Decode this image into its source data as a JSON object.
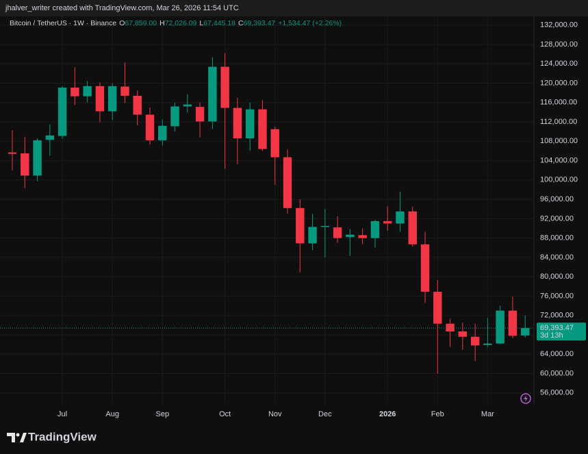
{
  "header": {
    "text": "jhalver_writer created with TradingView.com, Mar 26, 2026 11:54 UTC"
  },
  "chart_data": {
    "type": "candlestick",
    "symbol": "Bitcoin / TetherUS · 1W · Binance",
    "ohlc_legend": [
      {
        "label": "O",
        "value": "67,859.00"
      },
      {
        "label": "H",
        "value": "72,026.09"
      },
      {
        "label": "L",
        "value": "67,445.18"
      },
      {
        "label": "C",
        "value": "69,393.47"
      }
    ],
    "change": "+1,534.47 (+2.26%)",
    "open": [
      105700,
      105500,
      100900,
      108300,
      109100,
      119100,
      117300,
      119400,
      114200,
      119300,
      117400,
      113500,
      108200,
      111100,
      115200,
      115100,
      112100,
      123400,
      114900,
      108600,
      114600,
      110500,
      104700,
      94200,
      86900,
      90300,
      90200,
      88200,
      88600,
      88000,
      91500,
      91000,
      93500,
      86700,
      76900,
      70300,
      68700,
      67600,
      65900,
      66200,
      73000,
      67859
    ],
    "high": [
      110300,
      108900,
      108600,
      111500,
      119400,
      123300,
      120500,
      120200,
      120000,
      124300,
      118500,
      115000,
      112500,
      116000,
      117700,
      116000,
      125400,
      126200,
      117000,
      116000,
      116500,
      111000,
      106300,
      96000,
      93000,
      94000,
      92500,
      89900,
      90000,
      91800,
      94500,
      97600,
      94500,
      89300,
      79300,
      71300,
      70500,
      70300,
      71500,
      74000,
      75900,
      72026.09
    ],
    "low": [
      102000,
      98300,
      99700,
      105000,
      108500,
      115500,
      116000,
      111900,
      112400,
      115900,
      111300,
      107300,
      107100,
      110000,
      113900,
      108800,
      110500,
      102300,
      103300,
      106000,
      106000,
      99000,
      93000,
      80900,
      85500,
      84000,
      87000,
      84300,
      86700,
      86000,
      89500,
      89300,
      86200,
      74600,
      60000,
      65500,
      64900,
      62600,
      65500,
      66000,
      67300,
      67445.18
    ],
    "close": [
      105400,
      100900,
      108200,
      109200,
      119100,
      117300,
      119400,
      114200,
      119400,
      117400,
      113500,
      108200,
      111200,
      115200,
      115600,
      112100,
      123400,
      114900,
      108600,
      114600,
      106400,
      104700,
      94200,
      86900,
      90300,
      90500,
      88000,
      88700,
      88000,
      91500,
      91000,
      93500,
      86700,
      76900,
      70300,
      68700,
      67600,
      65800,
      66200,
      73000,
      67800,
      69393.47
    ],
    "up_color": "#089981",
    "down_color": "#f23645",
    "ylim": [
      53700,
      133800
    ],
    "yticks": [
      {
        "value": 56000,
        "label": "56,000.00"
      },
      {
        "value": 60000,
        "label": "60,000.00"
      },
      {
        "value": 64000,
        "label": "64,000.00"
      },
      {
        "value": 68000,
        "label": "68,000.00"
      },
      {
        "value": 72000,
        "label": "72,000.00"
      },
      {
        "value": 76000,
        "label": "76,000.00"
      },
      {
        "value": 80000,
        "label": "80,000.00"
      },
      {
        "value": 84000,
        "label": "84,000.00"
      },
      {
        "value": 88000,
        "label": "88,000.00"
      },
      {
        "value": 92000,
        "label": "92,000.00"
      },
      {
        "value": 96000,
        "label": "96,000.00"
      },
      {
        "value": 100000,
        "label": "100,000.00"
      },
      {
        "value": 104000,
        "label": "104,000.00"
      },
      {
        "value": 108000,
        "label": "108,000.00"
      },
      {
        "value": 112000,
        "label": "112,000.00"
      },
      {
        "value": 116000,
        "label": "116,000.00"
      },
      {
        "value": 120000,
        "label": "120,000.00"
      },
      {
        "value": 124000,
        "label": "124,000.00"
      },
      {
        "value": 128000,
        "label": "128,000.00"
      },
      {
        "value": 132000,
        "label": "132,000.00"
      }
    ],
    "xlim": [
      -0.985,
      41.7
    ],
    "xticks": [
      {
        "value": 4,
        "label": "Jul"
      },
      {
        "value": 8,
        "label": "Aug"
      },
      {
        "value": 12,
        "label": "Sep"
      },
      {
        "value": 17,
        "label": "Oct"
      },
      {
        "value": 21,
        "label": "Nov"
      },
      {
        "value": 25,
        "label": "Dec"
      },
      {
        "value": 30,
        "label": "2026"
      },
      {
        "value": 34,
        "label": "Feb"
      },
      {
        "value": 38,
        "label": "Mar"
      }
    ],
    "last_price": {
      "value": 69393.47,
      "label": "69,393.47"
    },
    "countdown": "3d 13h",
    "grid": true
  },
  "footer": {
    "logo": "TradingView"
  }
}
